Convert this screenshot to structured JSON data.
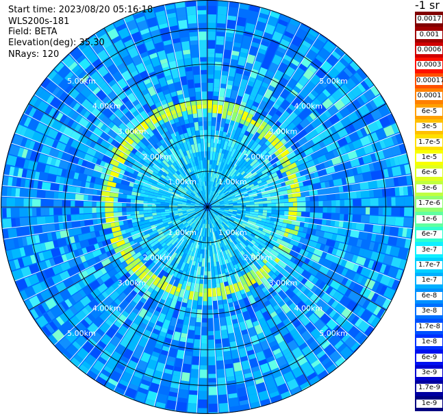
{
  "header": {
    "start_time": "Start time: 2023/08/20 05:16:18",
    "instrument": "WLS200s-181",
    "field": "Field: BETA",
    "elevation": "Elevation(deg): 35.30",
    "nrays": "NRays: 120"
  },
  "chart_data": {
    "type": "heatmap",
    "projection": "polar (PPI scan)",
    "title": "",
    "field": "BETA",
    "units": "-1 sr",
    "n_rays": 120,
    "elevation_deg": 35.3,
    "range_rings_km": [
      1.0,
      2.0,
      3.0,
      4.0,
      5.0
    ],
    "range_ring_labels": [
      "1.00km",
      "2.00km",
      "3.00km",
      "4.00km",
      "5.00km"
    ],
    "max_range_km": 5.8,
    "azimuth_lines_deg": [
      0,
      30,
      60,
      90,
      120,
      150,
      180,
      210,
      240,
      270,
      300,
      330
    ],
    "enhanced_ring_km": {
      "range_km": [
        2.4,
        2.8
      ],
      "value": "1e-5 to 1.7e-6"
    },
    "typical_background": "1e-7 to 1e-8",
    "colorbar": {
      "title": "-1 sr",
      "labels": [
        "0.0017",
        "0.001",
        "0.0006",
        "0.0003",
        "0.00017",
        "0.0001",
        "6e-5",
        "3e-5",
        "1.7e-5",
        "1e-5",
        "6e-6",
        "3e-6",
        "1.7e-6",
        "1e-6",
        "6e-7",
        "3e-7",
        "1.7e-7",
        "1e-7",
        "6e-8",
        "3e-8",
        "1.7e-8",
        "1e-8",
        "6e-9",
        "3e-9",
        "1.7e-9",
        "1e-9"
      ],
      "colors": [
        "#800000",
        "#a00000",
        "#d00000",
        "#ff1000",
        "#ff5000",
        "#ff8000",
        "#ffa000",
        "#ffc000",
        "#ffe000",
        "#f8ff00",
        "#e0ff20",
        "#c0ff40",
        "#90ff70",
        "#60ffa0",
        "#30ffd0",
        "#10f0ff",
        "#00d0ff",
        "#00b0ff",
        "#0090ff",
        "#0070ff",
        "#0050ff",
        "#0030ff",
        "#0010f0",
        "#0000d0",
        "#0000a0",
        "#000080"
      ]
    }
  }
}
